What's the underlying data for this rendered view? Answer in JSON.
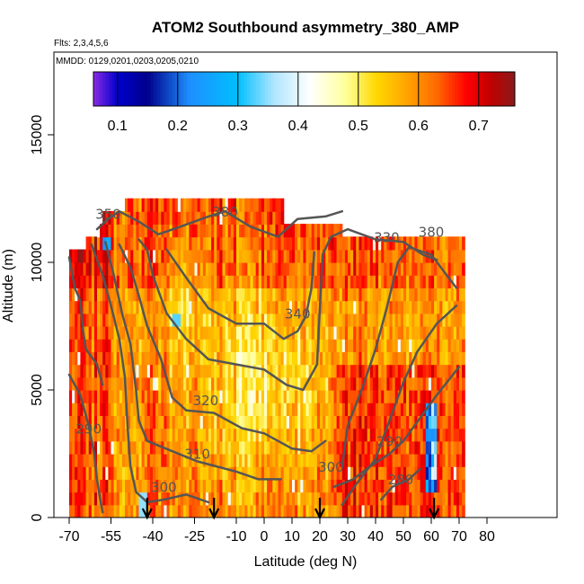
{
  "chart_data": {
    "type": "heatmap",
    "title": "ATOM2 Southbound asymmetry_380_AMP",
    "flights_note": "Flts: 2,3,4,5,6",
    "dates_note": "MMDD: 0129,0201,0203,0205,0210",
    "xlabel": "Latitude (deg N)",
    "ylabel": "Altitude (m)",
    "xlim": [
      -70,
      85
    ],
    "ylim": [
      0,
      17500
    ],
    "x_ticks": [
      -70,
      -55,
      -40,
      -25,
      -10,
      0,
      10,
      20,
      30,
      40,
      50,
      60,
      70,
      80
    ],
    "y_ticks": [
      0,
      5000,
      10000,
      15000
    ],
    "colorbar": {
      "range": [
        0.06,
        0.76
      ],
      "ticks": [
        0.1,
        0.2,
        0.3,
        0.4,
        0.5,
        0.6,
        0.7
      ],
      "colors": [
        "#8a2be2",
        "#0000cd",
        "#00008b",
        "#1e90ff",
        "#00bfff",
        "#ffffff",
        "#ffff99",
        "#ffd700",
        "#ff8c00",
        "#ff4500",
        "#ff0000",
        "#8b0000"
      ]
    },
    "contour_labels": [
      {
        "label": "290",
        "lat": -63,
        "alt": 3300
      },
      {
        "label": "300",
        "lat": -36,
        "alt": 1000
      },
      {
        "label": "310",
        "lat": -24,
        "alt": 2300
      },
      {
        "label": "320",
        "lat": -21,
        "alt": 4400
      },
      {
        "label": "330",
        "lat": 44,
        "alt": 10800
      },
      {
        "label": "340",
        "lat": 12,
        "alt": 7800
      },
      {
        "label": "350",
        "lat": -56,
        "alt": 11700
      },
      {
        "label": "380",
        "lat": -14,
        "alt": 11800
      },
      {
        "label": "380",
        "lat": 60,
        "alt": 11000
      },
      {
        "label": "290",
        "lat": 45,
        "alt": 2800
      },
      {
        "label": "300",
        "lat": 24,
        "alt": 1800
      },
      {
        "label": "280",
        "lat": 49,
        "alt": 1300
      }
    ],
    "arrow_markers_lat": [
      -42,
      -18,
      20,
      61
    ],
    "grid": false
  }
}
